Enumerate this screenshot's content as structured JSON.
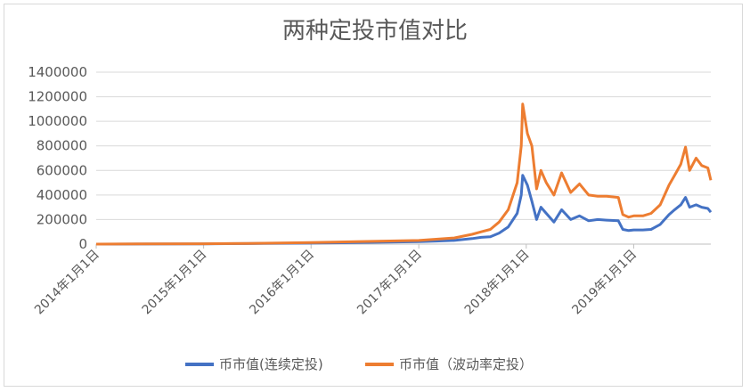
{
  "chart_data": {
    "type": "line",
    "title": "两种定投市值对比",
    "xlabel": "",
    "ylabel": "",
    "ylim": [
      0,
      1400000
    ],
    "yticks": [
      0,
      200000,
      400000,
      600000,
      800000,
      1000000,
      1200000,
      1400000
    ],
    "ytick_labels": [
      "0",
      "200000",
      "400000",
      "600000",
      "800000",
      "1000000",
      "1200000",
      "1400000"
    ],
    "xlim": [
      "2014-01-01",
      "2019-09-20"
    ],
    "xticks": [
      "2014-01-01",
      "2015-01-01",
      "2016-01-01",
      "2017-01-01",
      "2018-01-01",
      "2019-01-01"
    ],
    "xtick_labels": [
      "2014年1月1日",
      "2015年1月1日",
      "2016年1月1日",
      "2017年1月1日",
      "2018年1月1日",
      "2019年1月1日"
    ],
    "grid": true,
    "legend_position": "bottom",
    "series": [
      {
        "name": "币市值(连续定投)",
        "color": "#4472c4",
        "points": [
          [
            "2014-01-01",
            0
          ],
          [
            "2014-06-01",
            1000
          ],
          [
            "2015-01-01",
            2000
          ],
          [
            "2015-06-01",
            4000
          ],
          [
            "2016-01-01",
            8000
          ],
          [
            "2016-06-01",
            12000
          ],
          [
            "2017-01-01",
            20000
          ],
          [
            "2017-03-01",
            25000
          ],
          [
            "2017-05-01",
            30000
          ],
          [
            "2017-07-01",
            45000
          ],
          [
            "2017-08-01",
            55000
          ],
          [
            "2017-09-01",
            60000
          ],
          [
            "2017-10-01",
            90000
          ],
          [
            "2017-11-01",
            140000
          ],
          [
            "2017-12-01",
            250000
          ],
          [
            "2017-12-15",
            400000
          ],
          [
            "2017-12-20",
            560000
          ],
          [
            "2018-01-05",
            480000
          ],
          [
            "2018-01-20",
            350000
          ],
          [
            "2018-02-05",
            200000
          ],
          [
            "2018-02-20",
            300000
          ],
          [
            "2018-03-10",
            250000
          ],
          [
            "2018-04-05",
            180000
          ],
          [
            "2018-05-01",
            280000
          ],
          [
            "2018-06-01",
            200000
          ],
          [
            "2018-07-01",
            230000
          ],
          [
            "2018-08-01",
            190000
          ],
          [
            "2018-09-01",
            200000
          ],
          [
            "2018-10-01",
            195000
          ],
          [
            "2018-11-10",
            190000
          ],
          [
            "2018-11-25",
            120000
          ],
          [
            "2018-12-15",
            110000
          ],
          [
            "2019-01-01",
            115000
          ],
          [
            "2019-02-01",
            115000
          ],
          [
            "2019-03-01",
            120000
          ],
          [
            "2019-04-01",
            160000
          ],
          [
            "2019-05-01",
            240000
          ],
          [
            "2019-05-20",
            280000
          ],
          [
            "2019-06-10",
            320000
          ],
          [
            "2019-06-26",
            380000
          ],
          [
            "2019-07-10",
            300000
          ],
          [
            "2019-08-01",
            320000
          ],
          [
            "2019-08-20",
            300000
          ],
          [
            "2019-09-10",
            290000
          ],
          [
            "2019-09-20",
            260000
          ]
        ]
      },
      {
        "name": "币市值（波动率定投）",
        "color": "#ed7d31",
        "points": [
          [
            "2014-01-01",
            0
          ],
          [
            "2014-06-01",
            1500
          ],
          [
            "2015-01-01",
            3000
          ],
          [
            "2015-06-01",
            6000
          ],
          [
            "2016-01-01",
            12000
          ],
          [
            "2016-06-01",
            20000
          ],
          [
            "2017-01-01",
            30000
          ],
          [
            "2017-03-01",
            40000
          ],
          [
            "2017-05-01",
            50000
          ],
          [
            "2017-07-01",
            80000
          ],
          [
            "2017-08-01",
            100000
          ],
          [
            "2017-09-01",
            120000
          ],
          [
            "2017-10-01",
            180000
          ],
          [
            "2017-11-01",
            280000
          ],
          [
            "2017-12-01",
            500000
          ],
          [
            "2017-12-15",
            800000
          ],
          [
            "2017-12-20",
            1140000
          ],
          [
            "2018-01-05",
            900000
          ],
          [
            "2018-01-20",
            800000
          ],
          [
            "2018-02-05",
            450000
          ],
          [
            "2018-02-20",
            600000
          ],
          [
            "2018-03-10",
            500000
          ],
          [
            "2018-04-05",
            400000
          ],
          [
            "2018-05-01",
            580000
          ],
          [
            "2018-06-01",
            420000
          ],
          [
            "2018-07-01",
            490000
          ],
          [
            "2018-08-01",
            400000
          ],
          [
            "2018-09-01",
            390000
          ],
          [
            "2018-10-01",
            390000
          ],
          [
            "2018-11-10",
            380000
          ],
          [
            "2018-11-25",
            240000
          ],
          [
            "2018-12-15",
            220000
          ],
          [
            "2019-01-01",
            230000
          ],
          [
            "2019-02-01",
            230000
          ],
          [
            "2019-03-01",
            250000
          ],
          [
            "2019-04-01",
            320000
          ],
          [
            "2019-05-01",
            480000
          ],
          [
            "2019-05-20",
            560000
          ],
          [
            "2019-06-10",
            650000
          ],
          [
            "2019-06-26",
            790000
          ],
          [
            "2019-07-10",
            600000
          ],
          [
            "2019-08-01",
            700000
          ],
          [
            "2019-08-20",
            640000
          ],
          [
            "2019-09-10",
            620000
          ],
          [
            "2019-09-20",
            520000
          ]
        ]
      }
    ]
  }
}
